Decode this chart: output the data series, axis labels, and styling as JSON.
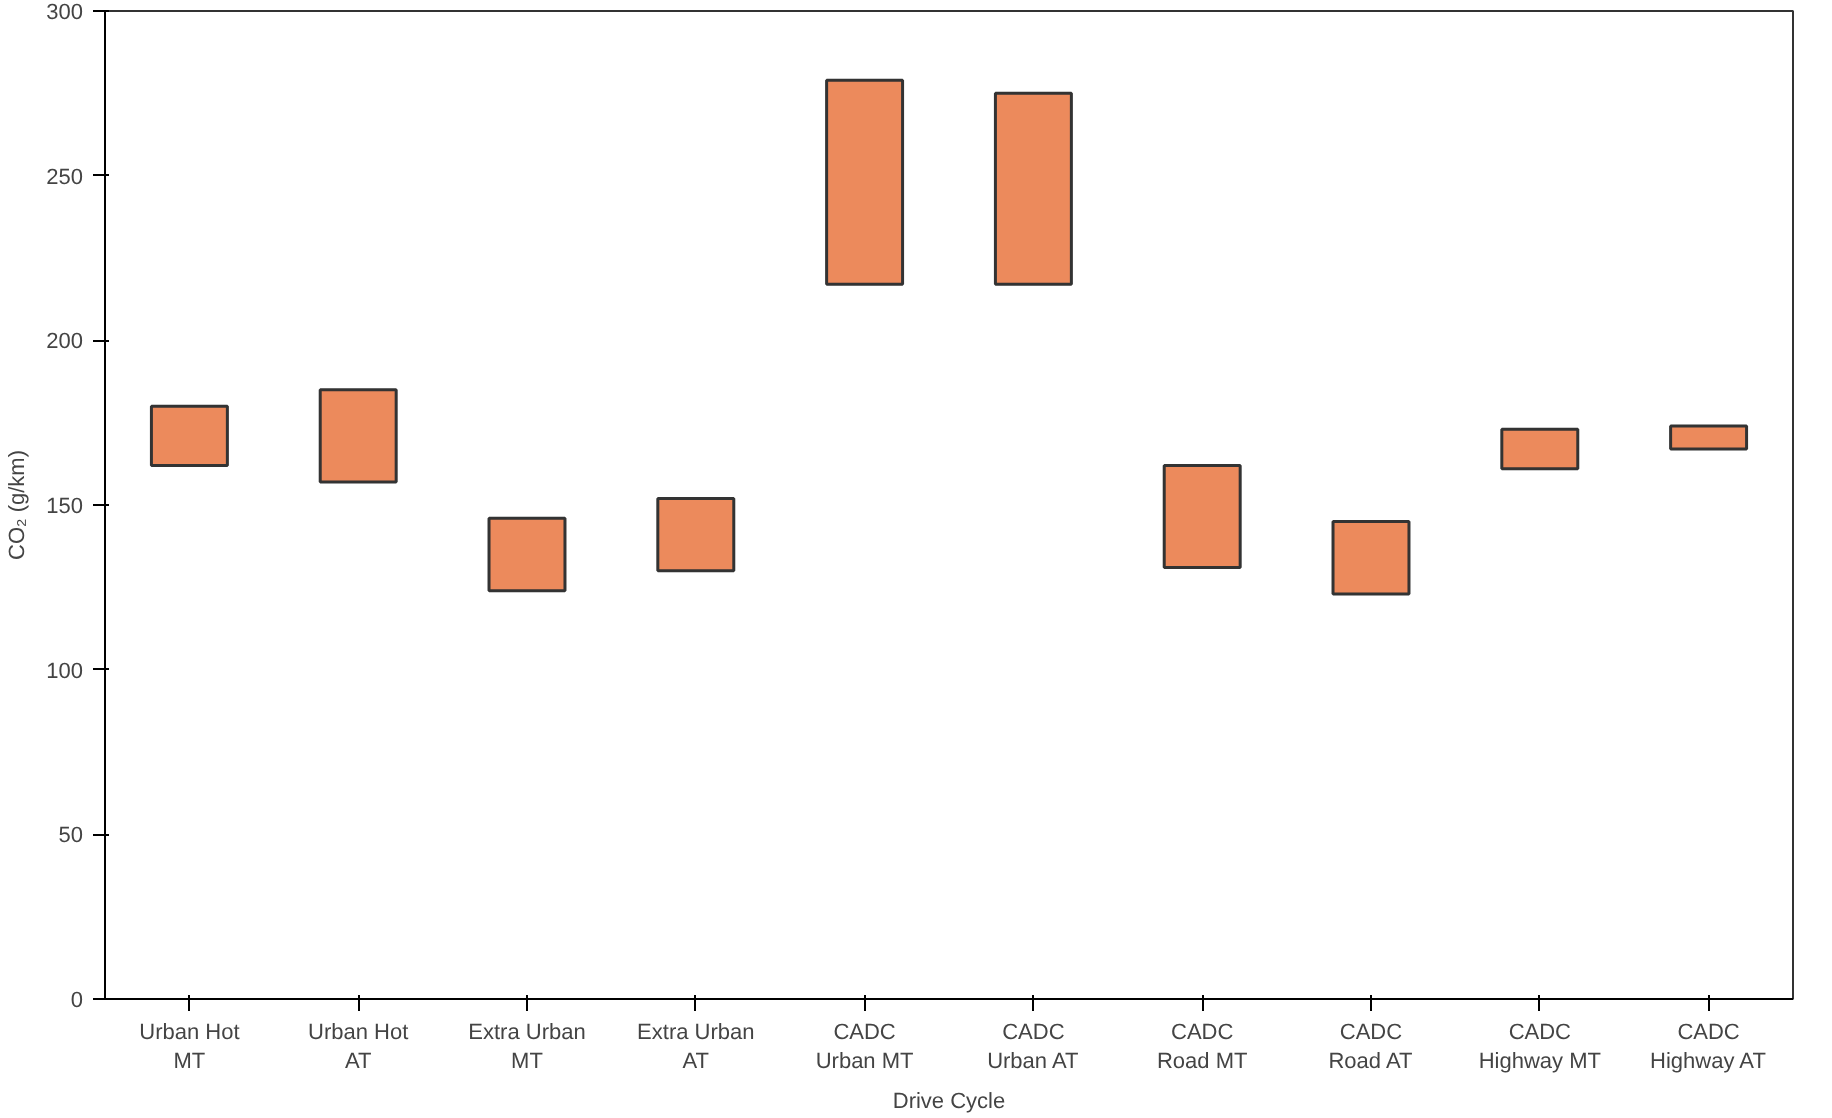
{
  "chart_data": {
    "type": "bar",
    "categories": [
      "Urban Hot\nMT",
      "Urban Hot\nAT",
      "Extra Urban\nMT",
      "Extra Urban\nAT",
      "CADC\nUrban MT",
      "CADC\nUrban AT",
      "CADC\nRoad MT",
      "CADC\nRoad AT",
      "CADC\nHighway MT",
      "CADC\nHighway AT"
    ],
    "base": [
      162,
      157,
      124,
      130,
      217,
      217,
      131,
      123,
      161,
      167
    ],
    "values": [
      18,
      28,
      22,
      22,
      62,
      58,
      31,
      22,
      12,
      7
    ],
    "color": "#ec8a5c",
    "xlabel": "Drive Cycle",
    "ylabel": "CO₂ (g/km)",
    "ylim": [
      0,
      300
    ],
    "yticks": [
      0,
      50,
      100,
      150,
      200,
      250,
      300
    ],
    "grid": false
  }
}
